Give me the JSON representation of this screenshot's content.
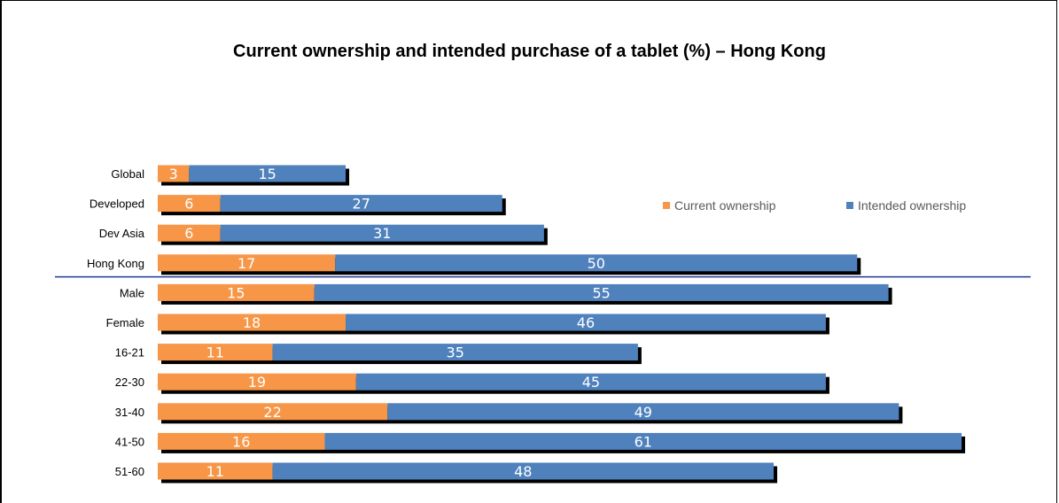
{
  "chart_data": {
    "type": "bar",
    "orientation": "horizontal",
    "stacked": true,
    "title": "Current ownership and intended purchase of a tablet (%) – Hong Kong",
    "categories": [
      "Global",
      "Developed",
      "Dev Asia",
      "Hong Kong",
      "Male",
      "Female",
      "16-21",
      "22-30",
      "31-40",
      "41-50",
      "51-60"
    ],
    "series": [
      {
        "name": "Current ownership",
        "color": "#F79646",
        "values": [
          3,
          6,
          6,
          17,
          15,
          18,
          11,
          19,
          22,
          16,
          11
        ]
      },
      {
        "name": "Intended ownership",
        "color": "#4F81BD",
        "values": [
          15,
          27,
          31,
          50,
          55,
          46,
          35,
          45,
          49,
          61,
          48
        ]
      }
    ],
    "legend_position": "right",
    "separator_after": "Hong Kong",
    "separator_color": "#1F3A93",
    "shadow_color": "#000000",
    "grid": false
  }
}
